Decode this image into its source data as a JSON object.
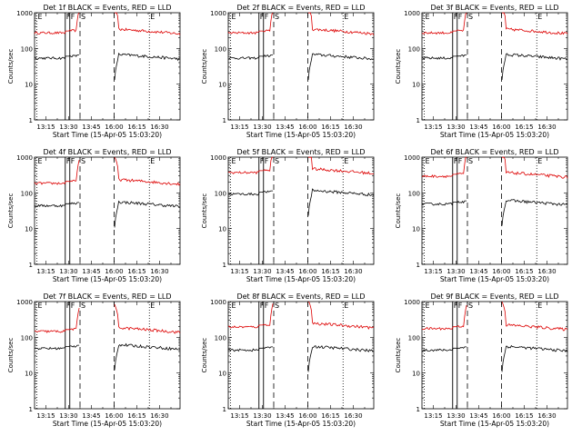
{
  "chart_data": {
    "type": "line",
    "grid": "3x3",
    "y_scale": "log",
    "ylim": [
      1,
      1000
    ],
    "y_tick_labels": [
      "1",
      "10",
      "100",
      "1000"
    ],
    "ylabel": "Counts/sec",
    "xlabel": "Start Time (15-Apr-05 15:03:20)",
    "x_tick_labels": [
      "13:15",
      "13:30",
      "13:45",
      "16:00",
      "16:15",
      "16:30"
    ],
    "x_tick_positions": [
      0.5,
      1.5,
      2.5,
      3.5,
      4.5,
      5.5
    ],
    "x_range": [
      0,
      6.4
    ],
    "markers": [
      {
        "label": "E",
        "x": 0.1,
        "style": "dotted"
      },
      {
        "label": "F",
        "x": 1.35,
        "style": "solid"
      },
      {
        "label": "F",
        "x": 1.55,
        "style": "solid"
      },
      {
        "label": "S",
        "x": 2.0,
        "style": "dashed"
      },
      {
        "label": "",
        "x": 3.5,
        "style": "dashed"
      },
      {
        "label": "E",
        "x": 5.05,
        "style": "dotted"
      }
    ],
    "series_colors": {
      "events": "#000000",
      "lld": "#dd0000"
    },
    "panels": [
      {
        "title": "Det 1f BLACK = Events, RED = LLD",
        "events_level": 55,
        "lld_level": 280
      },
      {
        "title": "Det 2f BLACK = Events, RED = LLD",
        "events_level": 55,
        "lld_level": 280
      },
      {
        "title": "Det 3f BLACK = Events, RED = LLD",
        "events_level": 55,
        "lld_level": 280
      },
      {
        "title": "Det 4f BLACK = Events, RED = LLD",
        "events_level": 45,
        "lld_level": 190
      },
      {
        "title": "Det 5f BLACK = Events, RED = LLD",
        "events_level": 95,
        "lld_level": 380
      },
      {
        "title": "Det 6f BLACK = Events, RED = LLD",
        "events_level": 50,
        "lld_level": 300
      },
      {
        "title": "Det 7f BLACK = Events, RED = LLD",
        "events_level": 50,
        "lld_level": 150
      },
      {
        "title": "Det 8f BLACK = Events, RED = LLD",
        "events_level": 45,
        "lld_level": 200
      },
      {
        "title": "Det 9f BLACK = Events, RED = LLD",
        "events_level": 45,
        "lld_level": 180
      }
    ]
  }
}
